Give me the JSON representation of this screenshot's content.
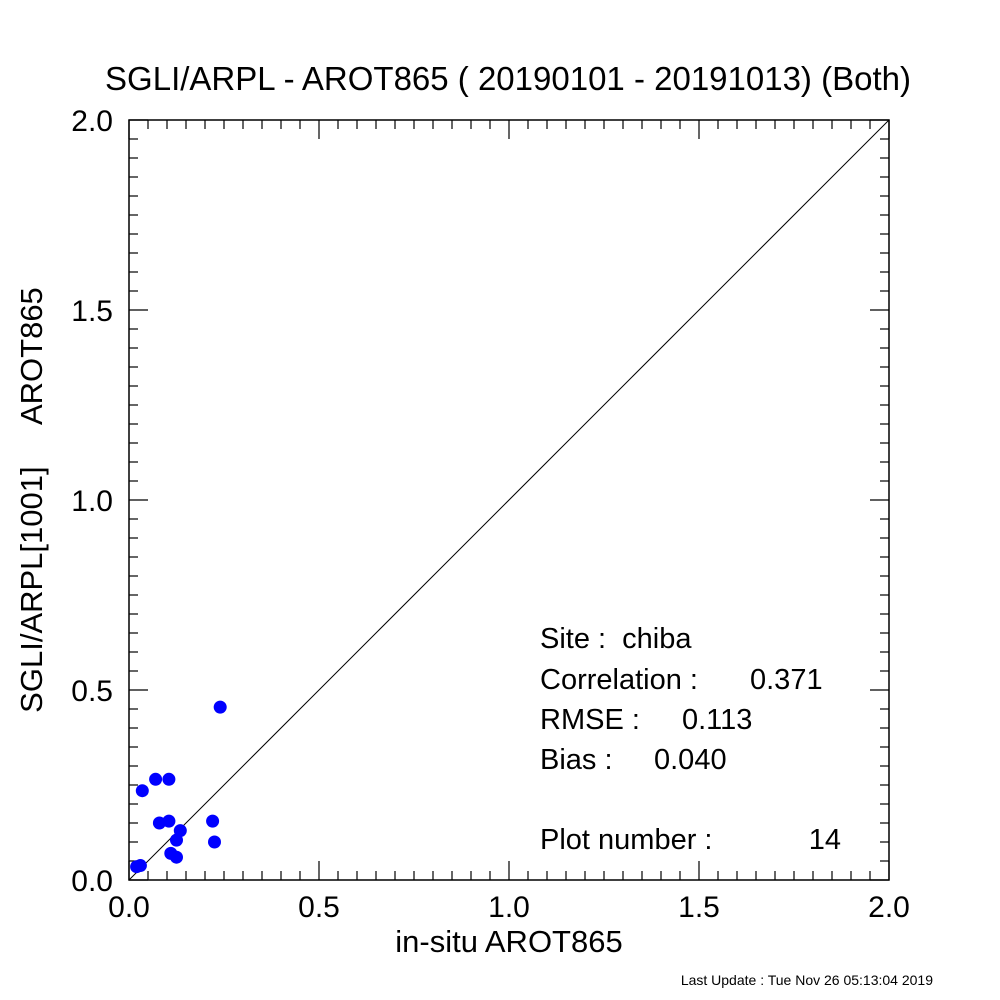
{
  "chart_data": {
    "type": "scatter",
    "title": "SGLI/ARPL - AROT865 ( 20190101 - 20191013) (Both)",
    "xlabel": "in-situ AROT865",
    "ylabel": "SGLI/ARPL[1001]     AROT865",
    "xlim": [
      0.0,
      2.0
    ],
    "ylim": [
      0.0,
      2.0
    ],
    "x_ticks": [
      "0.0",
      "0.5",
      "1.0",
      "1.5",
      "2.0"
    ],
    "y_ticks": [
      "0.0",
      "0.5",
      "1.0",
      "1.5",
      "2.0"
    ],
    "x_tick_values": [
      0.0,
      0.5,
      1.0,
      1.5,
      2.0
    ],
    "y_tick_values": [
      0.0,
      0.5,
      1.0,
      1.5,
      2.0
    ],
    "grid": false,
    "reference_line": "1:1",
    "point_color": "#0000ff",
    "line_color": "#000000",
    "points": [
      {
        "x": 0.02,
        "y": 0.035
      },
      {
        "x": 0.03,
        "y": 0.038
      },
      {
        "x": 0.035,
        "y": 0.235
      },
      {
        "x": 0.07,
        "y": 0.265
      },
      {
        "x": 0.08,
        "y": 0.15
      },
      {
        "x": 0.105,
        "y": 0.265
      },
      {
        "x": 0.105,
        "y": 0.155
      },
      {
        "x": 0.11,
        "y": 0.07
      },
      {
        "x": 0.125,
        "y": 0.06
      },
      {
        "x": 0.125,
        "y": 0.105
      },
      {
        "x": 0.135,
        "y": 0.13
      },
      {
        "x": 0.22,
        "y": 0.155
      },
      {
        "x": 0.225,
        "y": 0.1
      },
      {
        "x": 0.24,
        "y": 0.455
      }
    ],
    "stats": {
      "site_label": "Site :",
      "site_value": "chiba",
      "correlation_label": "Correlation :",
      "correlation_value": "0.371",
      "rmse_label": "RMSE :",
      "rmse_value": "0.113",
      "bias_label": "Bias :",
      "bias_value": "0.040",
      "plot_number_label": "Plot number :",
      "plot_number_value": "14"
    },
    "footer": "Last Update : Tue Nov 26 05:13:04 2019"
  }
}
